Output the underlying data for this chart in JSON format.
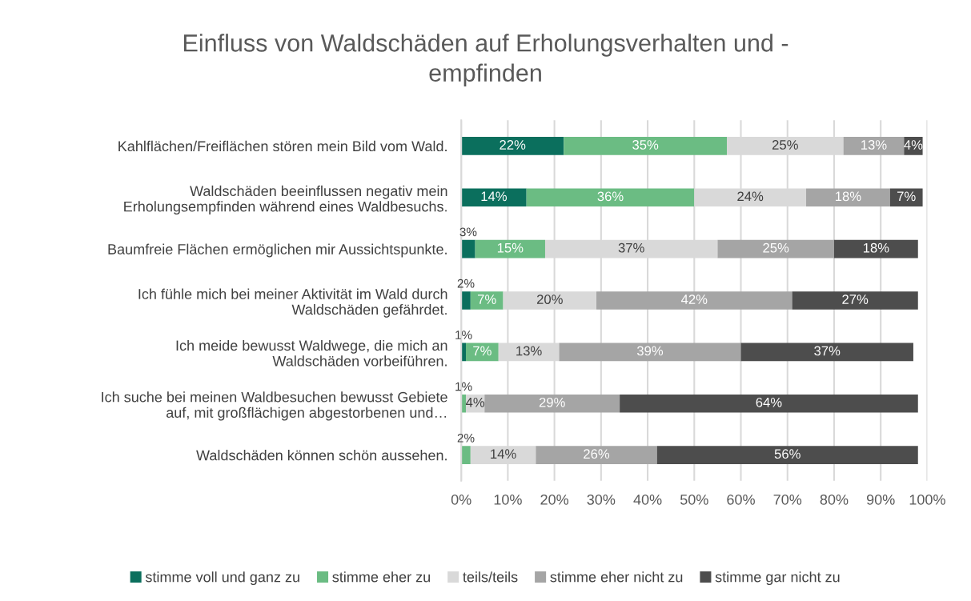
{
  "chart_data": {
    "type": "bar",
    "orientation": "horizontal",
    "stacked": true,
    "title": "Einfluss von Waldschäden auf Erholungsverhalten und -\nempfinden",
    "categories": [
      "Kahlflächen/Freiflächen stören mein Bild vom Wald.",
      "Waldschäden beeinflussen negativ mein\nErholungsempfinden während eines Waldbesuchs.",
      "Baumfreie Flächen ermöglichen mir Aussichtspunkte.",
      "Ich fühle mich bei meiner Aktivität im Wald durch\nWaldschäden gefährdet.",
      "Ich meide bewusst Waldwege, die mich an\nWaldschäden vorbeiführen.",
      "Ich suche bei meinen Waldbesuchen bewusst Gebiete\nauf, mit großflächigen abgestorbenen und…",
      "Waldschäden können schön aussehen."
    ],
    "series": [
      {
        "name": "stimme voll und ganz zu",
        "color": "#0b6f5d",
        "values": [
          22,
          14,
          3,
          2,
          1,
          null,
          null
        ],
        "value_labels": [
          "22%",
          "14%",
          "3%",
          "2%",
          "1%",
          null,
          null
        ]
      },
      {
        "name": "stimme eher zu",
        "color": "#6bbc83",
        "values": [
          35,
          36,
          15,
          7,
          7,
          1,
          2
        ],
        "value_labels": [
          "35%",
          "36%",
          "15%",
          "7%",
          "7%",
          "1%",
          "2%"
        ]
      },
      {
        "name": "teils/teils",
        "color": "#d9d9d9",
        "values": [
          25,
          24,
          37,
          20,
          13,
          4,
          14
        ],
        "value_labels": [
          "25%",
          "24%",
          "37%",
          "20%",
          "13%",
          "4%",
          "14%"
        ]
      },
      {
        "name": "stimme eher nicht zu",
        "color": "#a5a5a5",
        "values": [
          13,
          18,
          25,
          42,
          39,
          29,
          26
        ],
        "value_labels": [
          "13%",
          "18%",
          "25%",
          "42%",
          "39%",
          "29%",
          "26%"
        ]
      },
      {
        "name": "stimme gar nicht zu",
        "color": "#4d4d4d",
        "values": [
          4,
          7,
          18,
          27,
          37,
          64,
          56
        ],
        "value_labels": [
          "4%",
          "7%",
          "18%",
          "27%",
          "37%",
          "64%",
          "56%"
        ]
      }
    ],
    "xlim": [
      0,
      100
    ],
    "xticks": [
      {
        "value": 0,
        "label": "0%"
      },
      {
        "value": 10,
        "label": "10%"
      },
      {
        "value": 20,
        "label": "20%"
      },
      {
        "value": 30,
        "label": "30%"
      },
      {
        "value": 40,
        "label": "40%"
      },
      {
        "value": 50,
        "label": "50%"
      },
      {
        "value": 60,
        "label": "60%"
      },
      {
        "value": 70,
        "label": "70%"
      },
      {
        "value": 80,
        "label": "80%"
      },
      {
        "value": 90,
        "label": "90%"
      },
      {
        "value": 100,
        "label": "100%"
      }
    ],
    "grid": "x",
    "legend": "bottom"
  }
}
